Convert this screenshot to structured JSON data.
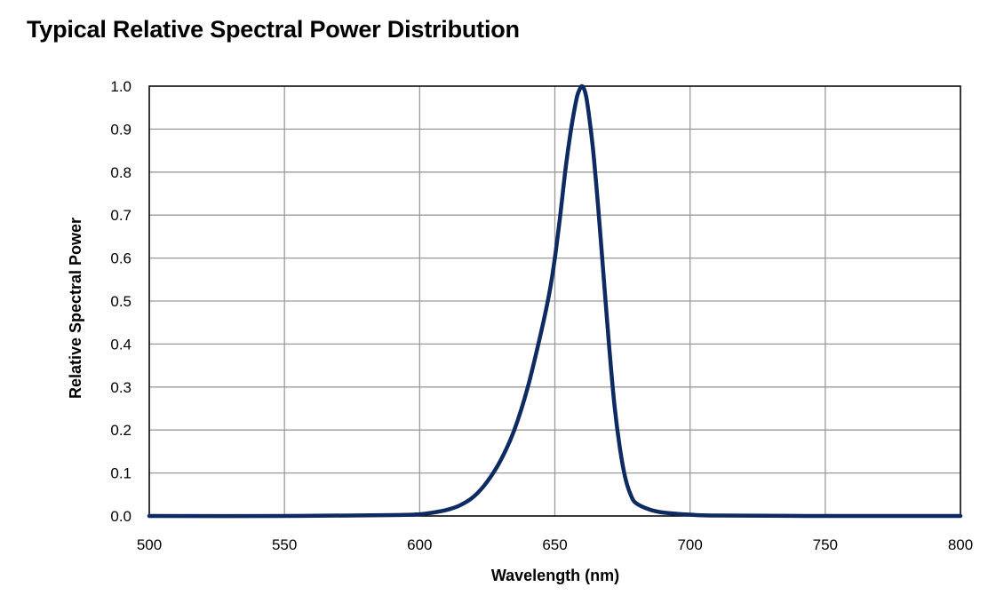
{
  "chart_data": {
    "type": "line",
    "title": "Typical Relative Spectral Power Distribution",
    "xlabel": "Wavelength (nm)",
    "ylabel": "Relative Spectral Power",
    "xlim": [
      500,
      800
    ],
    "ylim": [
      0.0,
      1.0
    ],
    "x_ticks": [
      "500",
      "550",
      "600",
      "650",
      "700",
      "750",
      "800"
    ],
    "y_ticks": [
      "0.0",
      "0.1",
      "0.2",
      "0.3",
      "0.4",
      "0.5",
      "0.6",
      "0.7",
      "0.8",
      "0.9",
      "1.0"
    ],
    "grid": true,
    "legend": false,
    "line_color": "#0d2a63",
    "series": [
      {
        "x": [
          500,
          550,
          590,
          600,
          605,
          610,
          615,
          620,
          625,
          630,
          635,
          640,
          645,
          648,
          650,
          652,
          654,
          656,
          658,
          659,
          660,
          661,
          662,
          664,
          666,
          668,
          670,
          672,
          674,
          676,
          678,
          680,
          685,
          690,
          700,
          710,
          750,
          800
        ],
        "y": [
          0.0,
          0.0,
          0.002,
          0.004,
          0.008,
          0.014,
          0.025,
          0.045,
          0.08,
          0.13,
          0.2,
          0.3,
          0.43,
          0.52,
          0.6,
          0.7,
          0.81,
          0.9,
          0.97,
          0.99,
          1.0,
          0.99,
          0.96,
          0.86,
          0.72,
          0.56,
          0.4,
          0.26,
          0.16,
          0.09,
          0.05,
          0.03,
          0.015,
          0.008,
          0.003,
          0.001,
          0.0,
          0.0
        ]
      }
    ]
  }
}
